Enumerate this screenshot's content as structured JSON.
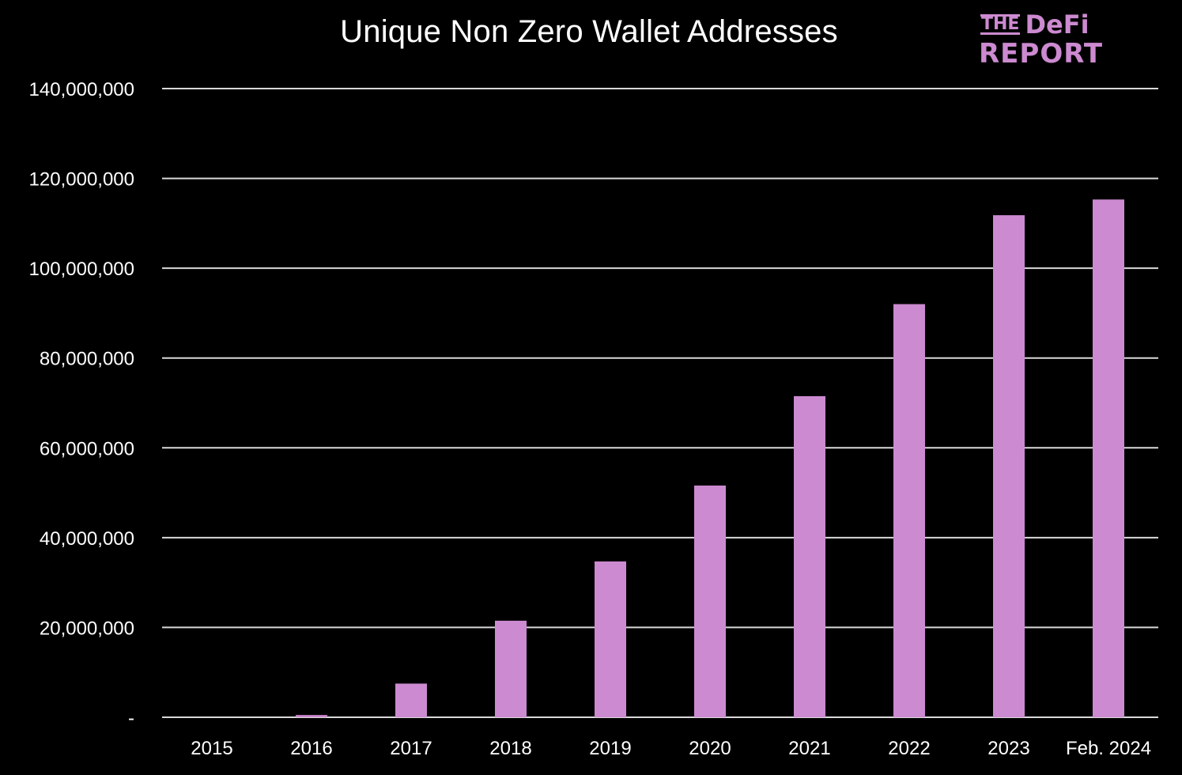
{
  "chart_data": {
    "type": "bar",
    "title": "Unique Non Zero Wallet Addresses",
    "xlabel": "",
    "ylabel": "",
    "categories": [
      "2015",
      "2016",
      "2017",
      "2018",
      "2019",
      "2020",
      "2021",
      "2022",
      "2023",
      "Feb. 2024"
    ],
    "series": [
      {
        "values": [
          0,
          500000,
          7500000,
          21500000,
          34700000,
          51600000,
          71500000,
          92000000,
          111800000,
          115300000
        ]
      }
    ],
    "ylim": [
      0,
      140000000
    ],
    "y_ticks": [
      0,
      20000000,
      40000000,
      60000000,
      80000000,
      100000000,
      120000000,
      140000000
    ],
    "y_tick_labels": [
      "-",
      "20,000,000",
      "40,000,000",
      "60,000,000",
      "80,000,000",
      "100,000,000",
      "120,000,000",
      "140,000,000"
    ],
    "grid": "horizontal",
    "legend": "none"
  },
  "logo": {
    "line1_small": "THE",
    "line1_large": "DeFi",
    "line2": "REPORT"
  },
  "colors": {
    "background": "#000000",
    "bar": "#cc8ad0",
    "gridline": "#d9d9d9",
    "text": "#ffffff",
    "logo": "#cc8ad0"
  }
}
